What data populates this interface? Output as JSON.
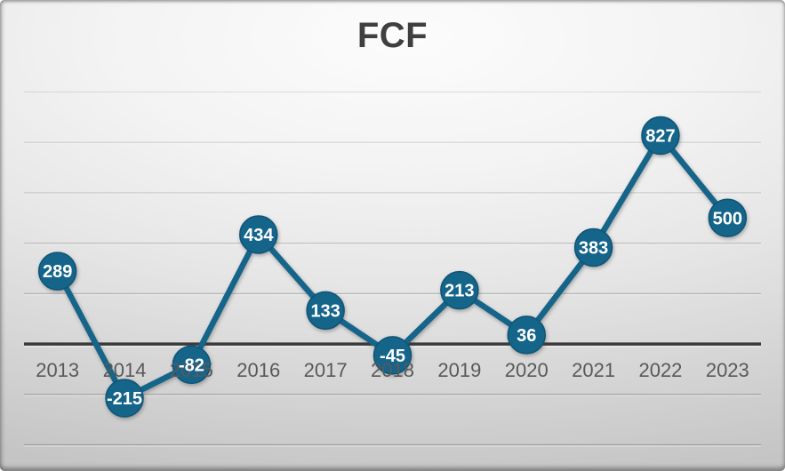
{
  "chart_data": {
    "type": "line",
    "title": "FCF",
    "categories": [
      "2013",
      "2014",
      "2015",
      "2016",
      "2017",
      "2018",
      "2019",
      "2020",
      "2021",
      "2022",
      "2023"
    ],
    "values": [
      289,
      -215,
      -82,
      434,
      133,
      -45,
      213,
      36,
      383,
      827,
      500
    ],
    "xlabel": "",
    "ylabel": "",
    "ylim": [
      -400,
      1000
    ],
    "gridline_step": 200,
    "grid": true,
    "legend_position": "none",
    "data_labels_visible": true,
    "y_axis_tick_labels_visible": false,
    "colors": {
      "series_line": "#15648a",
      "marker_fill": "#15648a",
      "marker_edge": "#0f5577",
      "data_label_text": "#ffffff",
      "axis_label_text": "#595959",
      "title_text": "#3f3f3f",
      "gridline": "#8f8f8f",
      "zero_line": "#3a3a3a",
      "background_light": "#fcfcfc",
      "background_dark": "#c5c5c5"
    }
  }
}
